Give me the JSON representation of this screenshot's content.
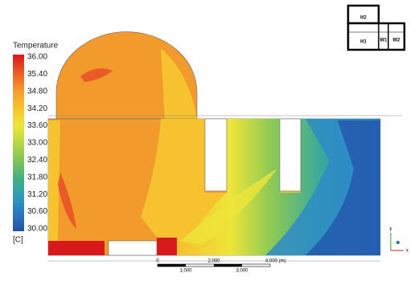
{
  "legend": {
    "title": "Temperature",
    "ticks": [
      "36.00",
      "35.40",
      "34.80",
      "34.20",
      "33.60",
      "33.00",
      "32.40",
      "31.80",
      "31.20",
      "30.60",
      "30.00"
    ],
    "unit": "[C]"
  },
  "scale_bar": {
    "top_labels": [
      "0",
      "2.000",
      "4.000 (m)"
    ],
    "bottom_labels": [
      "1.000",
      "3.000"
    ]
  },
  "floor_plan": {
    "rooms": [
      "H2",
      "H1",
      "W1",
      "W2"
    ]
  },
  "axes": [
    "y",
    "x"
  ]
}
